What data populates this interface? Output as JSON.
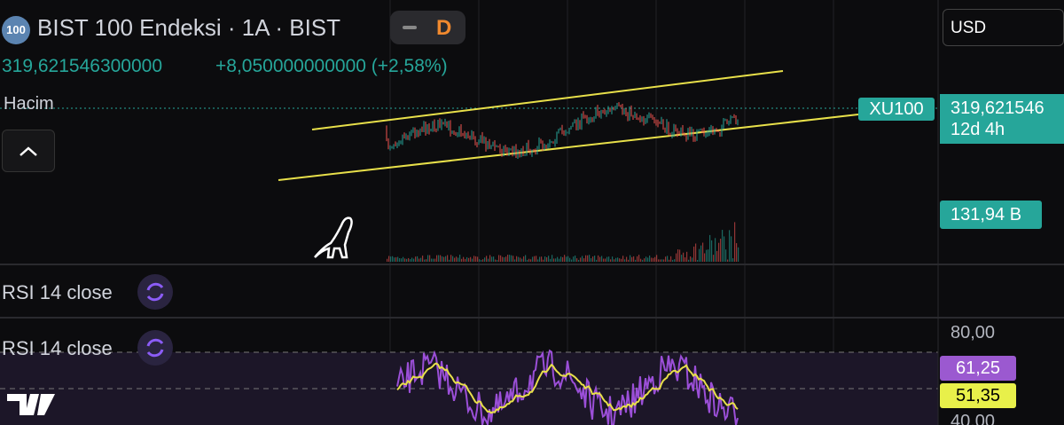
{
  "header": {
    "badge": "100",
    "title": "BIST 100 Endeksi · 1A · BIST",
    "mode": "D",
    "price": "319,621546300000",
    "change": "+8,050000000000 (+2,58%)"
  },
  "currency": "USD",
  "volume_label": "Hacim",
  "price_scale": {
    "symbol": "XU100",
    "last_price": "319,621546",
    "countdown": "12d 4h",
    "volume": "131,94 B"
  },
  "panes": [
    "RSI 14 close",
    "RSI 14 close"
  ],
  "rsi_scale": {
    "upper": "80,00",
    "rsi": "61,25",
    "ma": "51,35",
    "lower": "40,00"
  }
}
